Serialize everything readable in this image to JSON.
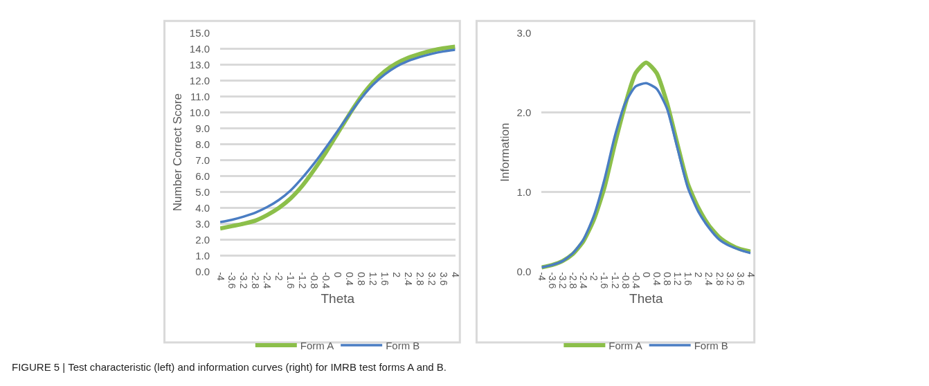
{
  "chart_data": [
    {
      "type": "line",
      "xlabel": "Theta",
      "ylabel": "Number Correct Score",
      "x": [
        -4,
        -3.6,
        -3.2,
        -2.8,
        -2.4,
        -2,
        -1.6,
        -1.2,
        -0.8,
        -0.4,
        0,
        0.4,
        0.8,
        1.2,
        1.6,
        2,
        2.4,
        2.8,
        3.2,
        3.6,
        4
      ],
      "series": [
        {
          "name": "Form A",
          "color": "#8cbf4a",
          "values": [
            2.7,
            2.85,
            3.0,
            3.2,
            3.55,
            4.0,
            4.6,
            5.4,
            6.4,
            7.5,
            8.7,
            9.9,
            11.0,
            11.9,
            12.6,
            13.1,
            13.45,
            13.7,
            13.9,
            14.05,
            14.15
          ]
        },
        {
          "name": "Form B",
          "color": "#4a7dc3",
          "values": [
            3.1,
            3.25,
            3.45,
            3.7,
            4.05,
            4.5,
            5.1,
            5.9,
            6.8,
            7.8,
            8.85,
            9.9,
            10.9,
            11.75,
            12.4,
            12.9,
            13.25,
            13.5,
            13.7,
            13.85,
            13.95
          ]
        }
      ],
      "xlim": [
        -4,
        4
      ],
      "xticks": [
        -4,
        -3.6,
        -3.2,
        -2.8,
        -2.4,
        -2,
        -1.6,
        -1.2,
        -0.8,
        -0.4,
        0,
        0.4,
        0.8,
        1.2,
        1.6,
        2,
        2.4,
        2.8,
        3.2,
        3.6,
        4
      ],
      "ylim": [
        0,
        15
      ],
      "yticks": [
        {
          "value": 0,
          "label": "0.0"
        },
        {
          "value": 1,
          "label": "1.0"
        },
        {
          "value": 2,
          "label": "2.0"
        },
        {
          "value": 3,
          "label": "3.0"
        },
        {
          "value": 4,
          "label": "4.0"
        },
        {
          "value": 5,
          "label": "5.0"
        },
        {
          "value": 6,
          "label": "6.0"
        },
        {
          "value": 7,
          "label": "7.0"
        },
        {
          "value": 8,
          "label": "8.0"
        },
        {
          "value": 9,
          "label": "9.0"
        },
        {
          "value": 10,
          "label": "10.0"
        },
        {
          "value": 11,
          "label": "11.0"
        },
        {
          "value": 12,
          "label": "12.0"
        },
        {
          "value": 13,
          "label": "13.0"
        },
        {
          "value": 14,
          "label": "14.0"
        },
        {
          "value": 15,
          "label": "15.0"
        }
      ],
      "grid": "y",
      "legend": "bottom",
      "marker": "none",
      "line_style": "solid",
      "annotations": [
        "FIGURE 5 | Test characteristic (left) and information curves (right) for IMRB test forms A and B."
      ]
    },
    {
      "type": "line",
      "xlabel": "Theta",
      "ylabel": "Information",
      "x": [
        -4,
        -3.6,
        -3.2,
        -2.8,
        -2.4,
        -2,
        -1.6,
        -1.2,
        -0.8,
        -0.4,
        0,
        0.4,
        0.8,
        1.2,
        1.6,
        2,
        2.4,
        2.8,
        3.2,
        3.6,
        4
      ],
      "series": [
        {
          "name": "Form A",
          "color": "#8cbf4a",
          "values": [
            0.05,
            0.08,
            0.13,
            0.22,
            0.38,
            0.65,
            1.05,
            1.6,
            2.1,
            2.5,
            2.63,
            2.5,
            2.12,
            1.6,
            1.1,
            0.8,
            0.58,
            0.43,
            0.34,
            0.28,
            0.25
          ]
        },
        {
          "name": "Form B",
          "color": "#4a7dc3",
          "values": [
            0.05,
            0.08,
            0.13,
            0.23,
            0.4,
            0.7,
            1.15,
            1.7,
            2.12,
            2.33,
            2.37,
            2.3,
            2.05,
            1.55,
            1.05,
            0.75,
            0.55,
            0.4,
            0.32,
            0.27,
            0.23
          ]
        }
      ],
      "xlim": [
        -4,
        4
      ],
      "xticks": [
        -4,
        -3.6,
        -3.2,
        -2.8,
        -2.4,
        -2,
        -1.6,
        -1.2,
        -0.8,
        -0.4,
        0,
        0.4,
        0.8,
        1.2,
        1.6,
        2,
        2.4,
        2.8,
        3.2,
        3.6,
        4
      ],
      "ylim": [
        0,
        3
      ],
      "yticks": [
        {
          "value": 0,
          "label": "0.0"
        },
        {
          "value": 1,
          "label": "1.0"
        },
        {
          "value": 2,
          "label": "2.0"
        },
        {
          "value": 3,
          "label": "3.0"
        }
      ],
      "grid": "y",
      "legend": "bottom",
      "marker": "none",
      "line_style": "solid"
    }
  ]
}
